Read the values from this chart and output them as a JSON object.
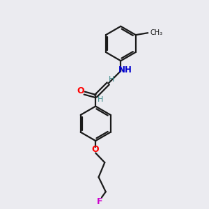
{
  "background_color": "#ebebf0",
  "bond_color": "#1a1a1a",
  "atom_colors": {
    "O": "#ff0000",
    "N": "#0000cd",
    "F": "#cc00cc",
    "H": "#3a8a8a",
    "C": "#1a1a1a"
  },
  "line_width": 1.6,
  "figsize": [
    3.0,
    3.0
  ],
  "dpi": 100
}
